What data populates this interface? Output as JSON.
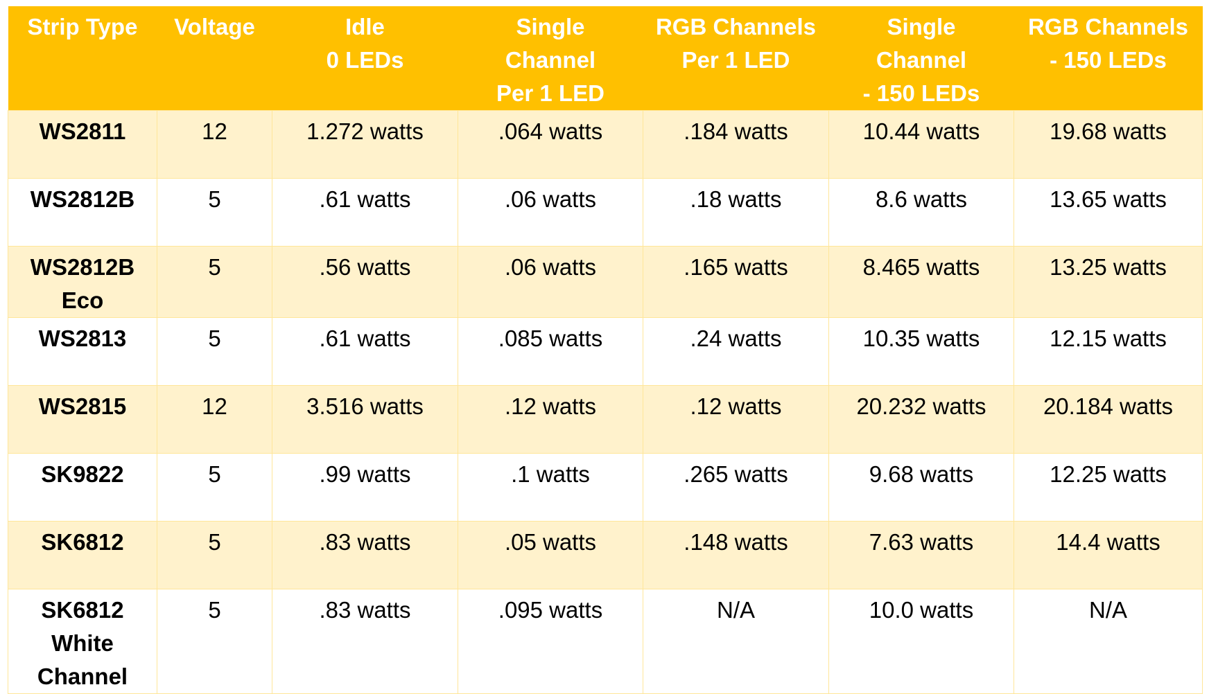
{
  "table": {
    "headers": [
      [
        "Strip Type"
      ],
      [
        "Voltage"
      ],
      [
        "Idle",
        "0 LEDs"
      ],
      [
        "Single",
        "Channel",
        "Per 1 LED"
      ],
      [
        "RGB Channels",
        "Per 1 LED"
      ],
      [
        "Single",
        "Channel",
        "- 150 LEDs"
      ],
      [
        "RGB Channels",
        "- 150 LEDs"
      ]
    ],
    "rows": [
      {
        "strip": [
          "WS2811"
        ],
        "voltage": "12",
        "idle": "1.272 watts",
        "single_per_led": ".064 watts",
        "rgb_per_led": ".184 watts",
        "single_150": "10.44 watts",
        "rgb_150": "19.68 watts"
      },
      {
        "strip": [
          "WS2812B"
        ],
        "voltage": "5",
        "idle": ".61 watts",
        "single_per_led": ".06 watts",
        "rgb_per_led": ".18 watts",
        "single_150": "8.6 watts",
        "rgb_150": "13.65 watts"
      },
      {
        "strip": [
          "WS2812B",
          "Eco"
        ],
        "voltage": "5",
        "idle": ".56 watts",
        "single_per_led": ".06 watts",
        "rgb_per_led": ".165 watts",
        "single_150": "8.465 watts",
        "rgb_150": "13.25 watts"
      },
      {
        "strip": [
          "WS2813"
        ],
        "voltage": "5",
        "idle": ".61 watts",
        "single_per_led": ".085 watts",
        "rgb_per_led": ".24 watts",
        "single_150": "10.35 watts",
        "rgb_150": "12.15 watts"
      },
      {
        "strip": [
          "WS2815"
        ],
        "voltage": "12",
        "idle": "3.516 watts",
        "single_per_led": ".12 watts",
        "rgb_per_led": ".12 watts",
        "single_150": "20.232 watts",
        "rgb_150": "20.184 watts"
      },
      {
        "strip": [
          "SK9822"
        ],
        "voltage": "5",
        "idle": ".99 watts",
        "single_per_led": ".1 watts",
        "rgb_per_led": ".265 watts",
        "single_150": "9.68 watts",
        "rgb_150": "12.25 watts"
      },
      {
        "strip": [
          "SK6812"
        ],
        "voltage": "5",
        "idle": ".83 watts",
        "single_per_led": ".05 watts",
        "rgb_per_led": ".148 watts",
        "single_150": "7.63 watts",
        "rgb_150": "14.4 watts"
      },
      {
        "strip": [
          "SK6812",
          "White",
          "Channel"
        ],
        "voltage": "5",
        "idle": ".83 watts",
        "single_per_led": ".095 watts",
        "rgb_per_led": "N/A",
        "single_150": "10.0 watts",
        "rgb_150": "N/A"
      }
    ]
  },
  "colors": {
    "header_bg": "#ffc000",
    "header_text": "#ffffff",
    "band_row": "#fff2cc",
    "plain_row": "#ffffff",
    "grid_line": "#ffe699"
  }
}
